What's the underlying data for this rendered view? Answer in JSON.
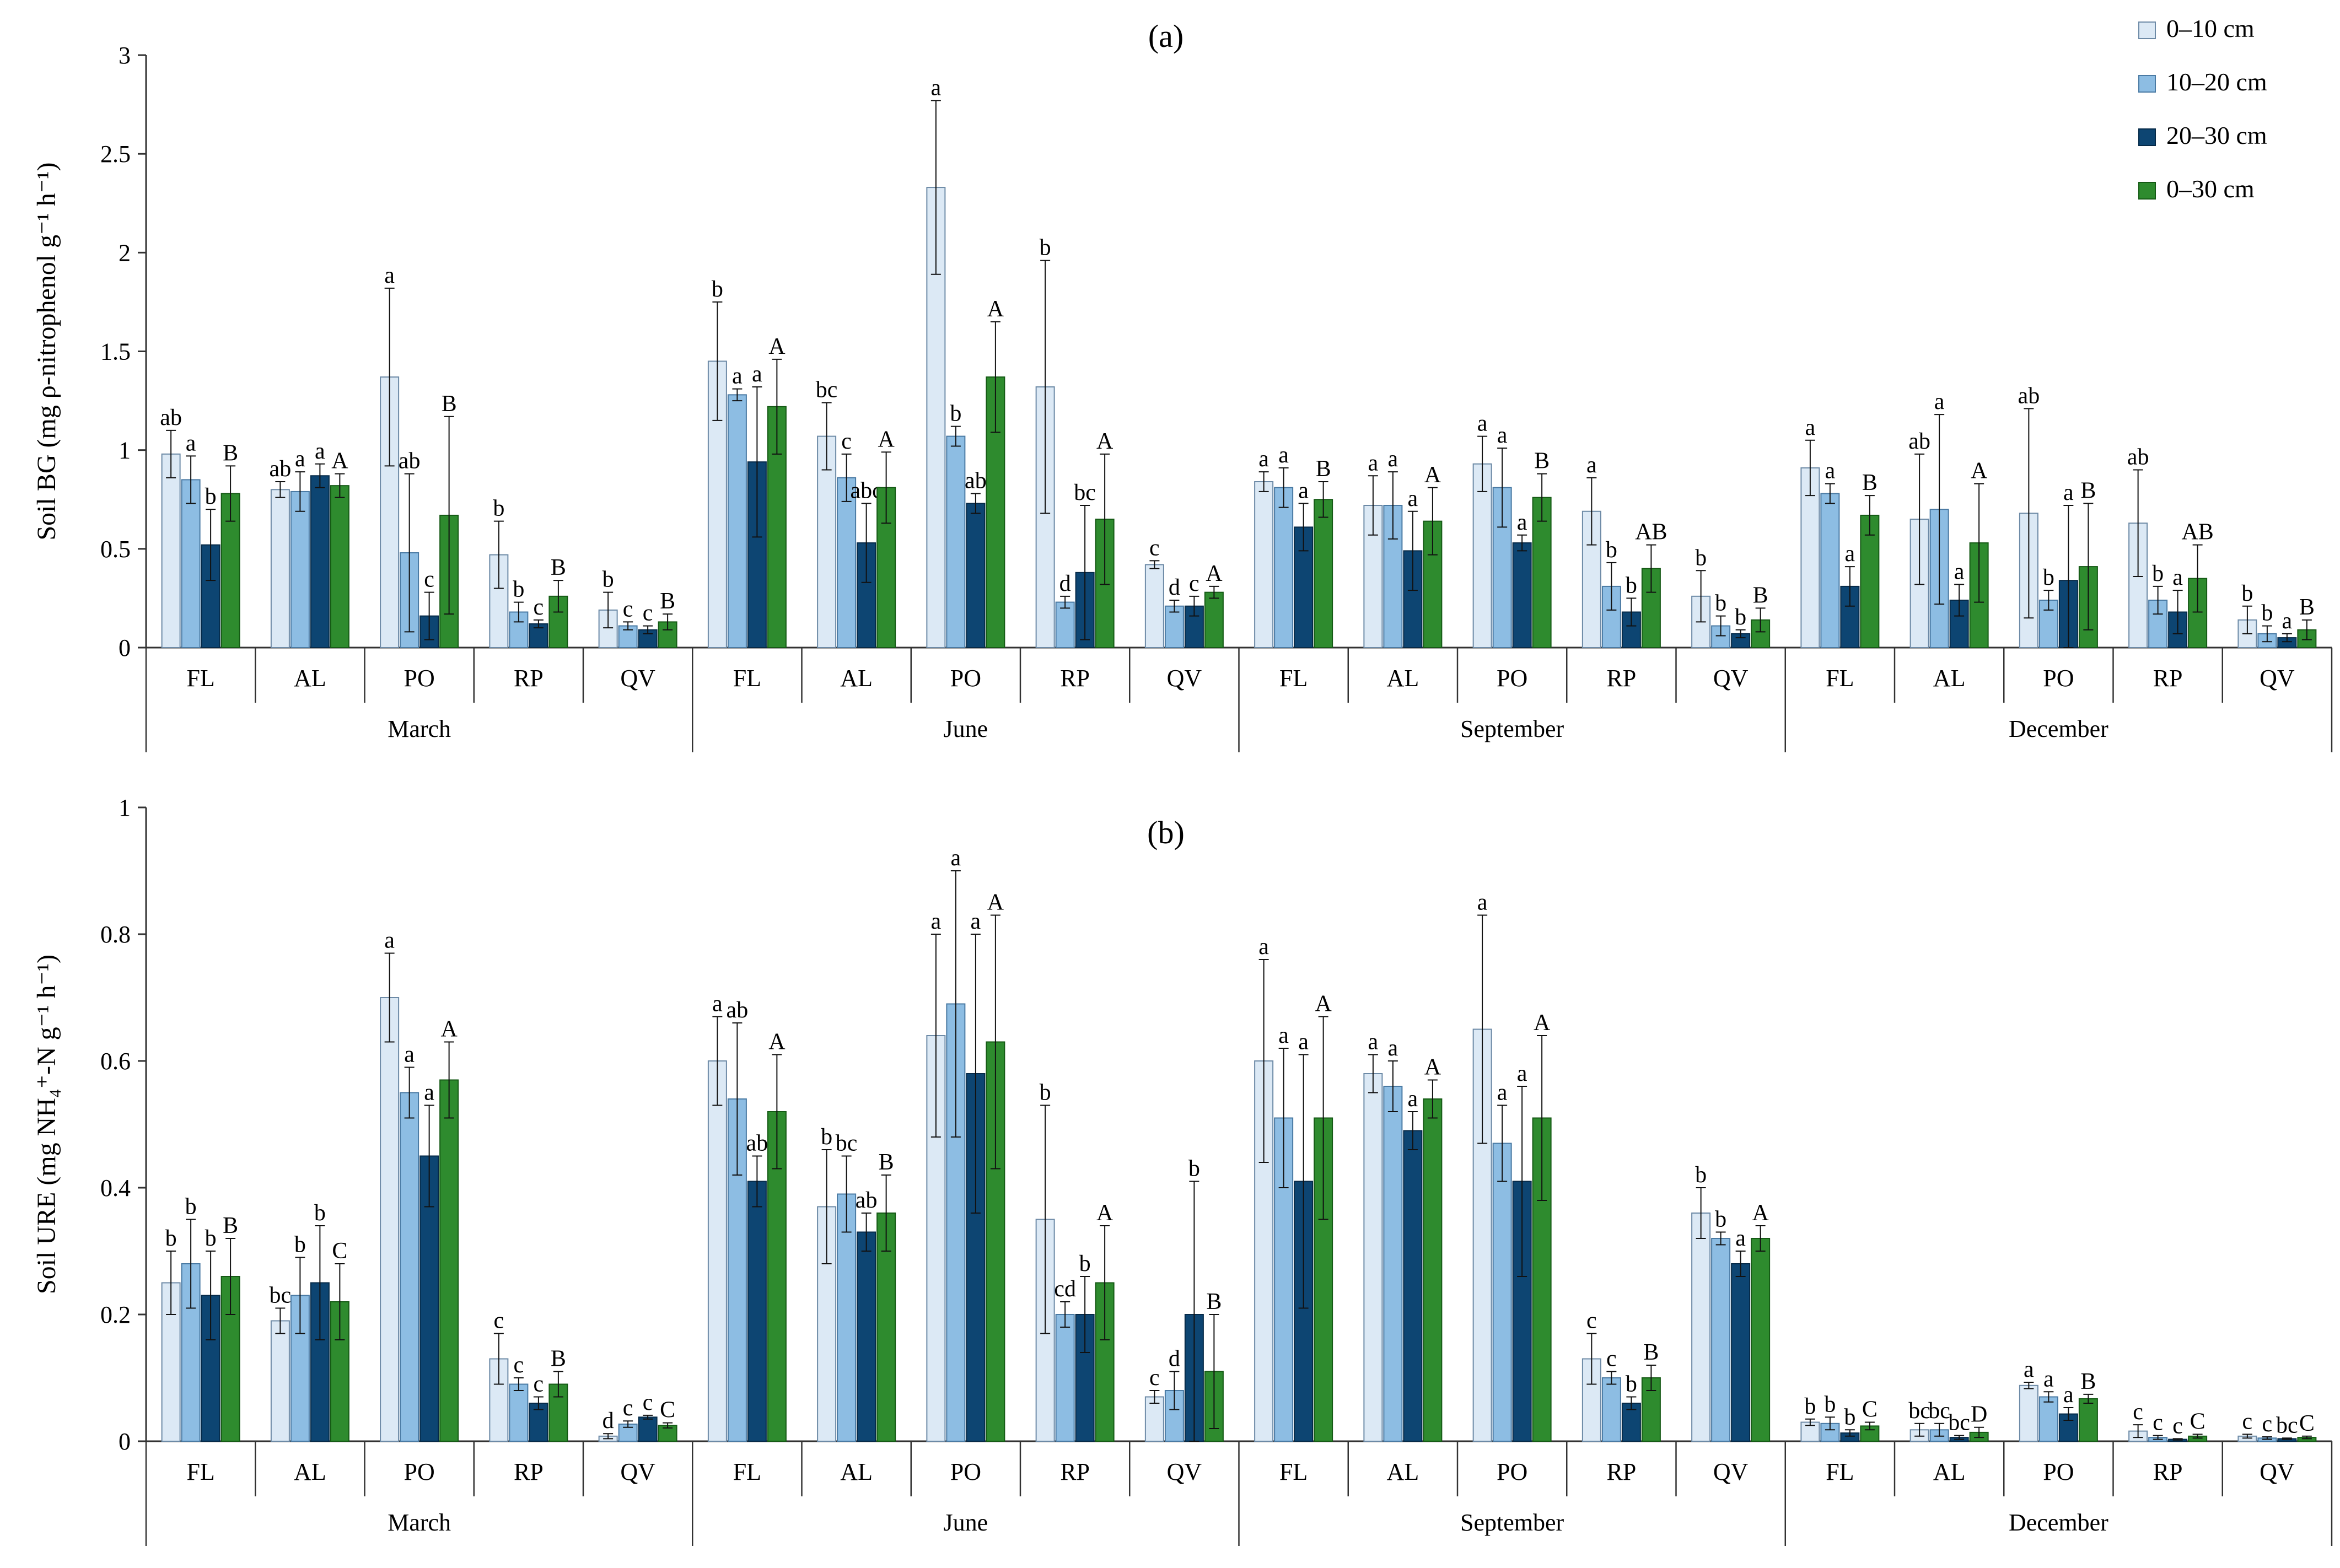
{
  "legend": {
    "position": "top-right",
    "entries": [
      {
        "label": "0–10 cm",
        "color": "#dce9f5"
      },
      {
        "label": "10–20 cm",
        "color": "#8dbde3"
      },
      {
        "label": "20–30 cm",
        "color": "#0d4572"
      },
      {
        "label": "0–30 cm",
        "color": "#2e8b2e"
      }
    ]
  },
  "chart_data": [
    {
      "type": "bar",
      "title": "(a)",
      "ylabel": "Soil BG (mg ρ-nitrophenol  g⁻¹ h⁻¹)",
      "ylim": [
        0,
        3
      ],
      "yticks": [
        "0",
        "0.5",
        "1",
        "1.5",
        "2",
        "2.5",
        "3"
      ],
      "grid": false,
      "months": [
        "March",
        "June",
        "September",
        "December"
      ],
      "sites": [
        "FL",
        "AL",
        "PO",
        "RP",
        "QV"
      ],
      "series_names": [
        "0–10 cm",
        "10–20 cm",
        "20–30 cm",
        "0–30 cm"
      ],
      "groups": [
        {
          "month": "March",
          "site": "FL",
          "values": [
            0.98,
            0.85,
            0.52,
            0.78
          ],
          "errors": [
            0.12,
            0.12,
            0.18,
            0.14
          ],
          "letters": [
            "ab",
            "a",
            "b",
            "B"
          ]
        },
        {
          "month": "March",
          "site": "AL",
          "values": [
            0.8,
            0.79,
            0.87,
            0.82
          ],
          "errors": [
            0.04,
            0.1,
            0.06,
            0.06
          ],
          "letters": [
            "ab",
            "a",
            "a",
            "A"
          ]
        },
        {
          "month": "March",
          "site": "PO",
          "values": [
            1.37,
            0.48,
            0.16,
            0.67
          ],
          "errors": [
            0.45,
            0.4,
            0.12,
            0.5
          ],
          "letters": [
            "a",
            "ab",
            "c",
            "B"
          ]
        },
        {
          "month": "March",
          "site": "RP",
          "values": [
            0.47,
            0.18,
            0.12,
            0.26
          ],
          "errors": [
            0.17,
            0.05,
            0.02,
            0.08
          ],
          "letters": [
            "b",
            "b",
            "c",
            "B"
          ]
        },
        {
          "month": "March",
          "site": "QV",
          "values": [
            0.19,
            0.11,
            0.09,
            0.13
          ],
          "errors": [
            0.09,
            0.02,
            0.02,
            0.04
          ],
          "letters": [
            "b",
            "c",
            "c",
            "B"
          ]
        },
        {
          "month": "June",
          "site": "FL",
          "values": [
            1.45,
            1.28,
            0.94,
            1.22
          ],
          "errors": [
            0.3,
            0.03,
            0.38,
            0.24
          ],
          "letters": [
            "b",
            "a",
            "a",
            "A"
          ]
        },
        {
          "month": "June",
          "site": "AL",
          "values": [
            1.07,
            0.86,
            0.53,
            0.81
          ],
          "errors": [
            0.17,
            0.12,
            0.2,
            0.18
          ],
          "letters": [
            "bc",
            "c",
            "abc",
            "A"
          ]
        },
        {
          "month": "June",
          "site": "PO",
          "values": [
            2.33,
            1.07,
            0.73,
            1.37
          ],
          "errors": [
            0.44,
            0.05,
            0.05,
            0.28
          ],
          "letters": [
            "a",
            "b",
            "ab",
            "A"
          ]
        },
        {
          "month": "June",
          "site": "RP",
          "values": [
            1.32,
            0.23,
            0.38,
            0.65
          ],
          "errors": [
            0.64,
            0.03,
            0.34,
            0.33
          ],
          "letters": [
            "b",
            "d",
            "bc",
            "A"
          ]
        },
        {
          "month": "June",
          "site": "QV",
          "values": [
            0.42,
            0.21,
            0.21,
            0.28
          ],
          "errors": [
            0.02,
            0.03,
            0.05,
            0.03
          ],
          "letters": [
            "c",
            "d",
            "c",
            "A"
          ]
        },
        {
          "month": "September",
          "site": "FL",
          "values": [
            0.84,
            0.81,
            0.61,
            0.75
          ],
          "errors": [
            0.05,
            0.1,
            0.12,
            0.09
          ],
          "letters": [
            "a",
            "a",
            "a",
            "B"
          ]
        },
        {
          "month": "September",
          "site": "AL",
          "values": [
            0.72,
            0.72,
            0.49,
            0.64
          ],
          "errors": [
            0.15,
            0.17,
            0.2,
            0.17
          ],
          "letters": [
            "a",
            "a",
            "a",
            "A"
          ]
        },
        {
          "month": "September",
          "site": "PO",
          "values": [
            0.93,
            0.81,
            0.53,
            0.76
          ],
          "errors": [
            0.14,
            0.2,
            0.04,
            0.12
          ],
          "letters": [
            "a",
            "a",
            "a",
            "B"
          ]
        },
        {
          "month": "September",
          "site": "RP",
          "values": [
            0.69,
            0.31,
            0.18,
            0.4
          ],
          "errors": [
            0.17,
            0.12,
            0.07,
            0.12
          ],
          "letters": [
            "a",
            "b",
            "b",
            "AB"
          ]
        },
        {
          "month": "September",
          "site": "QV",
          "values": [
            0.26,
            0.11,
            0.07,
            0.14
          ],
          "errors": [
            0.13,
            0.05,
            0.02,
            0.06
          ],
          "letters": [
            "b",
            "b",
            "b",
            "B"
          ]
        },
        {
          "month": "December",
          "site": "FL",
          "values": [
            0.91,
            0.78,
            0.31,
            0.67
          ],
          "errors": [
            0.14,
            0.05,
            0.1,
            0.1
          ],
          "letters": [
            "a",
            "a",
            "a",
            "B"
          ]
        },
        {
          "month": "December",
          "site": "AL",
          "values": [
            0.65,
            0.7,
            0.24,
            0.53
          ],
          "errors": [
            0.33,
            0.48,
            0.08,
            0.3
          ],
          "letters": [
            "ab",
            "a",
            "a",
            "A"
          ]
        },
        {
          "month": "December",
          "site": "PO",
          "values": [
            0.68,
            0.24,
            0.34,
            0.41
          ],
          "errors": [
            0.53,
            0.05,
            0.38,
            0.32
          ],
          "letters": [
            "ab",
            "b",
            "a",
            "B"
          ]
        },
        {
          "month": "December",
          "site": "RP",
          "values": [
            0.63,
            0.24,
            0.18,
            0.35
          ],
          "errors": [
            0.27,
            0.07,
            0.11,
            0.17
          ],
          "letters": [
            "ab",
            "b",
            "a",
            "AB"
          ]
        },
        {
          "month": "December",
          "site": "QV",
          "values": [
            0.14,
            0.07,
            0.05,
            0.09
          ],
          "errors": [
            0.07,
            0.04,
            0.02,
            0.05
          ],
          "letters": [
            "b",
            "b",
            "a",
            "B"
          ]
        }
      ]
    },
    {
      "type": "bar",
      "title": "(b)",
      "ylabel": "Soil URE (mg NH₄⁺-N g⁻¹ h⁻¹)",
      "ylim": [
        0,
        1
      ],
      "yticks": [
        "0",
        "0.2",
        "0.4",
        "0.6",
        "0.8",
        "1"
      ],
      "grid": false,
      "months": [
        "March",
        "June",
        "September",
        "December"
      ],
      "sites": [
        "FL",
        "AL",
        "PO",
        "RP",
        "QV"
      ],
      "series_names": [
        "0–10 cm",
        "10–20 cm",
        "20–30 cm",
        "0–30 cm"
      ],
      "groups": [
        {
          "month": "March",
          "site": "FL",
          "values": [
            0.25,
            0.28,
            0.23,
            0.26
          ],
          "errors": [
            0.05,
            0.07,
            0.07,
            0.06
          ],
          "letters": [
            "b",
            "b",
            "b",
            "B"
          ]
        },
        {
          "month": "March",
          "site": "AL",
          "values": [
            0.19,
            0.23,
            0.25,
            0.22
          ],
          "errors": [
            0.02,
            0.06,
            0.09,
            0.06
          ],
          "letters": [
            "bc",
            "b",
            "b",
            "C"
          ]
        },
        {
          "month": "March",
          "site": "PO",
          "values": [
            0.7,
            0.55,
            0.45,
            0.57
          ],
          "errors": [
            0.07,
            0.04,
            0.08,
            0.06
          ],
          "letters": [
            "a",
            "a",
            "a",
            "A"
          ]
        },
        {
          "month": "March",
          "site": "RP",
          "values": [
            0.13,
            0.09,
            0.06,
            0.09
          ],
          "errors": [
            0.04,
            0.01,
            0.01,
            0.02
          ],
          "letters": [
            "c",
            "c",
            "c",
            "B"
          ]
        },
        {
          "month": "March",
          "site": "QV",
          "values": [
            0.008,
            0.027,
            0.038,
            0.025
          ],
          "errors": [
            0.004,
            0.005,
            0.003,
            0.004
          ],
          "letters": [
            "d",
            "c",
            "c",
            "C"
          ]
        },
        {
          "month": "June",
          "site": "FL",
          "values": [
            0.6,
            0.54,
            0.41,
            0.52
          ],
          "errors": [
            0.07,
            0.12,
            0.04,
            0.09
          ],
          "letters": [
            "a",
            "ab",
            "ab",
            "A"
          ]
        },
        {
          "month": "June",
          "site": "AL",
          "values": [
            0.37,
            0.39,
            0.33,
            0.36
          ],
          "errors": [
            0.09,
            0.06,
            0.03,
            0.06
          ],
          "letters": [
            "b",
            "bc",
            "ab",
            "B"
          ]
        },
        {
          "month": "June",
          "site": "PO",
          "values": [
            0.64,
            0.69,
            0.58,
            0.63
          ],
          "errors": [
            0.16,
            0.21,
            0.22,
            0.2
          ],
          "letters": [
            "a",
            "a",
            "a",
            "A"
          ]
        },
        {
          "month": "June",
          "site": "RP",
          "values": [
            0.35,
            0.2,
            0.2,
            0.25
          ],
          "errors": [
            0.18,
            0.02,
            0.06,
            0.09
          ],
          "letters": [
            "b",
            "cd",
            "b",
            "A"
          ]
        },
        {
          "month": "June",
          "site": "QV",
          "values": [
            0.07,
            0.08,
            0.2,
            0.11
          ],
          "errors": [
            0.01,
            0.03,
            0.21,
            0.09
          ],
          "letters": [
            "c",
            "d",
            "b",
            "B"
          ]
        },
        {
          "month": "September",
          "site": "FL",
          "values": [
            0.6,
            0.51,
            0.41,
            0.51
          ],
          "errors": [
            0.16,
            0.11,
            0.2,
            0.16
          ],
          "letters": [
            "a",
            "a",
            "a",
            "A"
          ]
        },
        {
          "month": "September",
          "site": "AL",
          "values": [
            0.58,
            0.56,
            0.49,
            0.54
          ],
          "errors": [
            0.03,
            0.04,
            0.03,
            0.03
          ],
          "letters": [
            "a",
            "a",
            "a",
            "A"
          ]
        },
        {
          "month": "September",
          "site": "PO",
          "values": [
            0.65,
            0.47,
            0.41,
            0.51
          ],
          "errors": [
            0.18,
            0.06,
            0.15,
            0.13
          ],
          "letters": [
            "a",
            "a",
            "a",
            "A"
          ]
        },
        {
          "month": "September",
          "site": "RP",
          "values": [
            0.13,
            0.1,
            0.06,
            0.1
          ],
          "errors": [
            0.04,
            0.01,
            0.01,
            0.02
          ],
          "letters": [
            "c",
            "c",
            "b",
            "B"
          ]
        },
        {
          "month": "September",
          "site": "QV",
          "values": [
            0.36,
            0.32,
            0.28,
            0.32
          ],
          "errors": [
            0.04,
            0.01,
            0.02,
            0.02
          ],
          "letters": [
            "b",
            "b",
            "a",
            "A"
          ]
        },
        {
          "month": "December",
          "site": "FL",
          "values": [
            0.03,
            0.028,
            0.013,
            0.024
          ],
          "errors": [
            0.005,
            0.01,
            0.005,
            0.006
          ],
          "letters": [
            "b",
            "b",
            "b",
            "C"
          ]
        },
        {
          "month": "December",
          "site": "AL",
          "values": [
            0.018,
            0.018,
            0.006,
            0.014
          ],
          "errors": [
            0.01,
            0.01,
            0.003,
            0.008
          ],
          "letters": [
            "bc",
            "bc",
            "bc",
            "D"
          ]
        },
        {
          "month": "December",
          "site": "PO",
          "values": [
            0.088,
            0.07,
            0.043,
            0.067
          ],
          "errors": [
            0.005,
            0.008,
            0.01,
            0.007
          ],
          "letters": [
            "a",
            "a",
            "a",
            "B"
          ]
        },
        {
          "month": "December",
          "site": "RP",
          "values": [
            0.016,
            0.006,
            0.003,
            0.008
          ],
          "errors": [
            0.01,
            0.003,
            0.001,
            0.003
          ],
          "letters": [
            "c",
            "c",
            "c",
            "C"
          ]
        },
        {
          "month": "December",
          "site": "QV",
          "values": [
            0.008,
            0.005,
            0.004,
            0.006
          ],
          "errors": [
            0.003,
            0.002,
            0.001,
            0.002
          ],
          "letters": [
            "c",
            "c",
            "bc",
            "C"
          ]
        }
      ]
    }
  ]
}
